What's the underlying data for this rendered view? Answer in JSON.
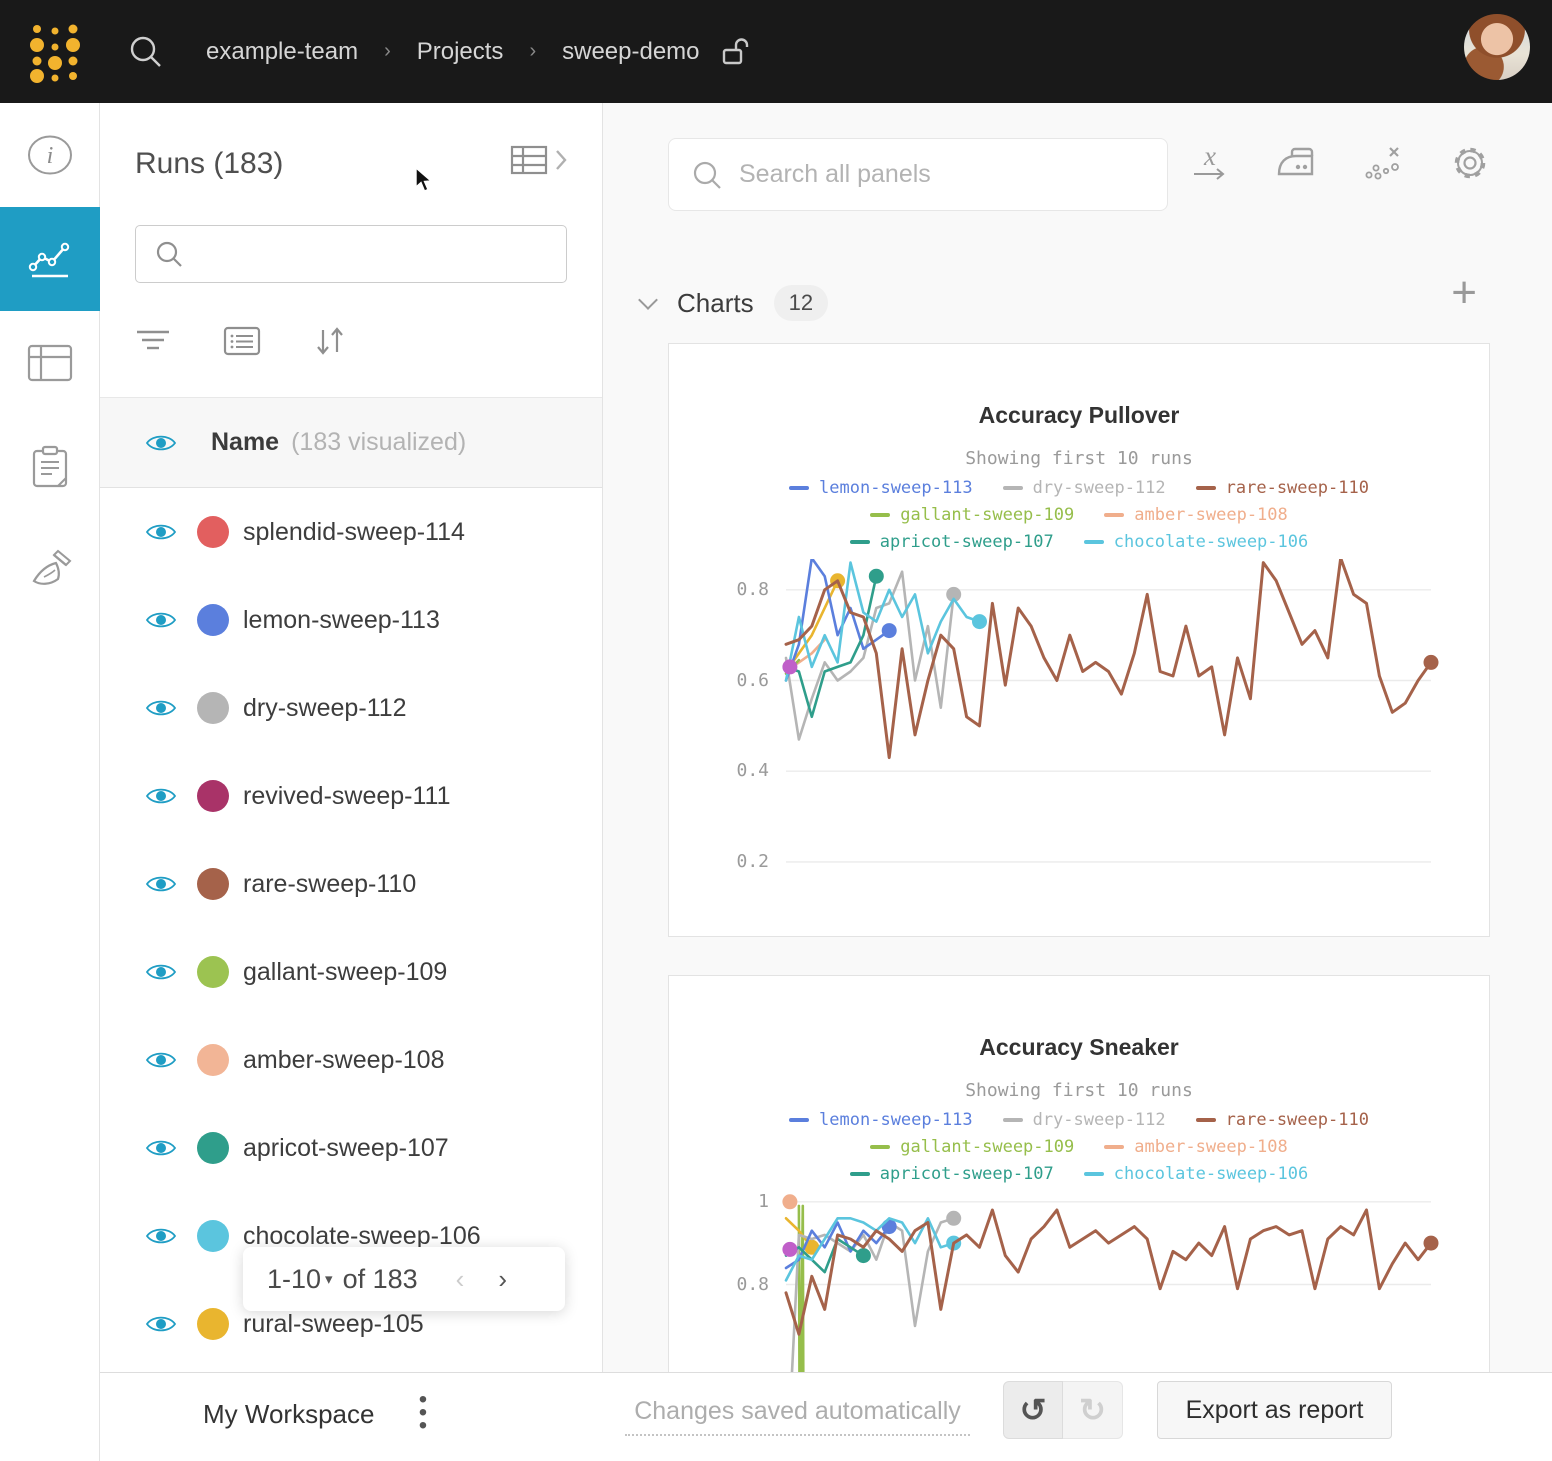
{
  "topbar": {
    "breadcrumb": [
      "example-team",
      "Projects",
      "sweep-demo"
    ]
  },
  "rail": {
    "items": [
      {
        "name": "info",
        "active": false
      },
      {
        "name": "charts",
        "active": true
      },
      {
        "name": "tables",
        "active": false
      },
      {
        "name": "notes",
        "active": false
      },
      {
        "name": "cleanup",
        "active": false
      }
    ]
  },
  "runs_panel": {
    "title": "Runs (183)",
    "search_placeholder": "",
    "header_name": "Name",
    "header_visualized": "(183 visualized)",
    "runs": [
      {
        "name": "splendid-sweep-114",
        "color": "#e25f5f"
      },
      {
        "name": "lemon-sweep-113",
        "color": "#5b7fdd"
      },
      {
        "name": "dry-sweep-112",
        "color": "#b5b5b5"
      },
      {
        "name": "revived-sweep-111",
        "color": "#a93368"
      },
      {
        "name": "rare-sweep-110",
        "color": "#a5624a"
      },
      {
        "name": "gallant-sweep-109",
        "color": "#9cc351"
      },
      {
        "name": "amber-sweep-108",
        "color": "#f2b596"
      },
      {
        "name": "apricot-sweep-107",
        "color": "#2f9e8b"
      },
      {
        "name": "chocolate-sweep-106",
        "color": "#5bc5de"
      },
      {
        "name": "rural-sweep-105",
        "color": "#e9b52f"
      }
    ],
    "pagination": {
      "label": "1-10",
      "of_label": "of 183"
    }
  },
  "main": {
    "search_placeholder": "Search all panels",
    "section_label": "Charts",
    "section_count": "12"
  },
  "workspace_bar": {
    "title": "My Workspace",
    "status": "Changes saved automatically",
    "export_label": "Export as report"
  },
  "chart_data": [
    {
      "type": "line",
      "title": "Accuracy Pullover",
      "subtitle": "Showing first 10 runs",
      "xlabel": "",
      "ylabel": "",
      "xmax": 50,
      "ylim": [
        0.0653,
        0.868
      ],
      "gridlines": [
        0.8,
        0.6,
        0.4,
        0.2
      ],
      "grid": true,
      "legend_position": "top",
      "legend_rows": [
        [
          "lemon-sweep-113",
          "dry-sweep-112",
          "rare-sweep-110"
        ],
        [
          "gallant-sweep-109",
          "amber-sweep-108"
        ],
        [
          "apricot-sweep-107",
          "chocolate-sweep-106"
        ]
      ],
      "series": [
        {
          "name": "amber-sweep-108",
          "color": "#f0ae8c",
          "end_dot": false,
          "x": [
            0,
            1,
            2,
            3
          ],
          "y": [
            0.62,
            0.64,
            0.66,
            0.69
          ]
        },
        {
          "name": "gallant-sweep-109",
          "color": "#96be4b",
          "end_dot": false,
          "x": [
            0,
            1
          ],
          "y": [
            0.615,
            0.645
          ]
        },
        {
          "name": "rural-sweep-105",
          "color": "#e9b52f",
          "end_dot": true,
          "x": [
            0,
            2,
            4
          ],
          "y": [
            0.62,
            0.7,
            0.82
          ]
        },
        {
          "name": "dry-sweep-112",
          "color": "#b5b5b5",
          "end_dot": true,
          "x": [
            0,
            1,
            2,
            3,
            4,
            5,
            6,
            7,
            8,
            9,
            10,
            11,
            12,
            13
          ],
          "y": [
            0.65,
            0.47,
            0.56,
            0.64,
            0.6,
            0.62,
            0.65,
            0.76,
            0.77,
            0.84,
            0.6,
            0.72,
            0.54,
            0.79
          ]
        },
        {
          "name": "lemon-sweep-113",
          "color": "#5b7fdd",
          "end_dot": true,
          "x": [
            0,
            1,
            2,
            3,
            4,
            5,
            6,
            7,
            8
          ],
          "y": [
            0.6,
            0.68,
            0.87,
            0.83,
            0.7,
            0.76,
            0.67,
            0.69,
            0.71
          ]
        },
        {
          "name": "apricot-sweep-107",
          "color": "#2f9e8b",
          "end_dot": true,
          "x": [
            0,
            1,
            2,
            3,
            4,
            5,
            6,
            7
          ],
          "y": [
            0.63,
            0.62,
            0.52,
            0.62,
            0.63,
            0.64,
            0.7,
            0.83
          ]
        },
        {
          "name": "chocolate-sweep-106",
          "color": "#5bc5de",
          "end_dot": true,
          "x": [
            0,
            1,
            2,
            3,
            4,
            5,
            6,
            7,
            8,
            9,
            10,
            11,
            12,
            13,
            14,
            15
          ],
          "y": [
            0.6,
            0.74,
            0.63,
            0.7,
            0.64,
            0.86,
            0.75,
            0.73,
            0.8,
            0.74,
            0.79,
            0.66,
            0.73,
            0.78,
            0.74,
            0.73
          ]
        },
        {
          "name": "revived-sweep-111",
          "color": "#c05fc9",
          "end_dot": true,
          "x": [
            0.3
          ],
          "y": [
            0.63
          ]
        },
        {
          "name": "rare-sweep-110",
          "color": "#a5624a",
          "end_dot": true,
          "x": [
            0,
            1,
            2,
            3,
            4,
            5,
            6,
            7,
            8,
            9,
            10,
            11,
            12,
            13,
            14,
            15,
            16,
            17,
            18,
            19,
            20,
            21,
            22,
            23,
            24,
            25,
            26,
            27,
            28,
            29,
            30,
            31,
            32,
            33,
            34,
            35,
            36,
            37,
            38,
            39,
            40,
            41,
            42,
            43,
            44,
            45,
            46,
            47,
            48,
            49,
            50
          ],
          "y": [
            0.68,
            0.69,
            0.72,
            0.8,
            0.82,
            0.75,
            0.74,
            0.66,
            0.43,
            0.67,
            0.48,
            0.6,
            0.7,
            0.67,
            0.52,
            0.5,
            0.77,
            0.59,
            0.76,
            0.72,
            0.65,
            0.6,
            0.7,
            0.62,
            0.64,
            0.62,
            0.57,
            0.66,
            0.79,
            0.62,
            0.61,
            0.72,
            0.61,
            0.63,
            0.48,
            0.65,
            0.56,
            0.86,
            0.82,
            0.75,
            0.68,
            0.71,
            0.65,
            0.87,
            0.79,
            0.77,
            0.61,
            0.53,
            0.55,
            0.6,
            0.64
          ]
        }
      ]
    },
    {
      "type": "line",
      "title": "Accuracy Sneaker",
      "subtitle": "Showing first 10 runs",
      "xlabel": "",
      "ylabel": "",
      "xmax": 50,
      "ylim": [
        0.5065,
        1.026
      ],
      "gridlines": [
        1,
        0.8
      ],
      "grid": true,
      "legend_position": "top",
      "legend_rows": [
        [
          "lemon-sweep-113",
          "dry-sweep-112",
          "rare-sweep-110"
        ],
        [
          "gallant-sweep-109",
          "amber-sweep-108"
        ],
        [
          "apricot-sweep-107",
          "chocolate-sweep-106"
        ]
      ],
      "series": [
        {
          "name": "amber-sweep-108",
          "color": "#f0ae8c",
          "end_dot": true,
          "x": [
            0.3
          ],
          "y": [
            1.0
          ]
        },
        {
          "name": "gallant-sweep-109",
          "color": "#96be4b",
          "end_dot": false,
          "x": [
            1.0,
            1.06,
            1.3,
            1.36
          ],
          "y": [
            0.99,
            0.4,
            0.99,
            0.4
          ]
        },
        {
          "name": "rural-sweep-105",
          "color": "#e9b52f",
          "end_dot": true,
          "x": [
            0,
            1,
            2
          ],
          "y": [
            0.96,
            0.93,
            0.89
          ]
        },
        {
          "name": "dry-sweep-112",
          "color": "#b5b5b5",
          "end_dot": true,
          "x": [
            0,
            1,
            2,
            3,
            4,
            5,
            6,
            7,
            8,
            9,
            10,
            11,
            12,
            13
          ],
          "y": [
            0.3,
            0.92,
            0.91,
            0.92,
            0.9,
            0.88,
            0.92,
            0.86,
            0.95,
            0.93,
            0.7,
            0.88,
            0.95,
            0.96
          ]
        },
        {
          "name": "lemon-sweep-113",
          "color": "#5b7fdd",
          "end_dot": true,
          "x": [
            0,
            1,
            2,
            3,
            4,
            5,
            6,
            7,
            8
          ],
          "y": [
            0.84,
            0.86,
            0.93,
            0.89,
            0.95,
            0.88,
            0.93,
            0.9,
            0.94
          ]
        },
        {
          "name": "apricot-sweep-107",
          "color": "#2f9e8b",
          "end_dot": true,
          "x": [
            0,
            1,
            2,
            3,
            4,
            5,
            6
          ],
          "y": [
            0.87,
            0.89,
            0.86,
            0.83,
            0.91,
            0.89,
            0.87
          ]
        },
        {
          "name": "chocolate-sweep-106",
          "color": "#5bc5de",
          "end_dot": true,
          "x": [
            0,
            1,
            2,
            3,
            4,
            5,
            6,
            7,
            8,
            9,
            10,
            11,
            12,
            13
          ],
          "y": [
            0.81,
            0.87,
            0.86,
            0.91,
            0.96,
            0.96,
            0.95,
            0.93,
            0.96,
            0.95,
            0.9,
            0.96,
            0.89,
            0.9
          ]
        },
        {
          "name": "revived-sweep-111",
          "color": "#c05fc9",
          "end_dot": true,
          "x": [
            0.3
          ],
          "y": [
            0.885
          ]
        },
        {
          "name": "rare-sweep-110",
          "color": "#a5624a",
          "end_dot": true,
          "x": [
            0,
            1,
            2,
            3,
            4,
            5,
            6,
            7,
            8,
            9,
            10,
            11,
            12,
            13,
            14,
            15,
            16,
            17,
            18,
            19,
            20,
            21,
            22,
            23,
            24,
            25,
            26,
            27,
            28,
            29,
            30,
            31,
            32,
            33,
            34,
            35,
            36,
            37,
            38,
            39,
            40,
            41,
            42,
            43,
            44,
            45,
            46,
            47,
            48,
            49,
            50
          ],
          "y": [
            0.78,
            0.68,
            0.82,
            0.74,
            0.92,
            0.91,
            0.89,
            0.93,
            0.91,
            0.88,
            0.93,
            0.95,
            0.74,
            0.9,
            0.92,
            0.89,
            0.98,
            0.87,
            0.83,
            0.91,
            0.94,
            0.98,
            0.89,
            0.91,
            0.93,
            0.9,
            0.92,
            0.94,
            0.91,
            0.79,
            0.88,
            0.86,
            0.9,
            0.87,
            0.94,
            0.79,
            0.91,
            0.93,
            0.94,
            0.92,
            0.93,
            0.79,
            0.91,
            0.94,
            0.92,
            0.98,
            0.79,
            0.85,
            0.9,
            0.86,
            0.9
          ]
        }
      ]
    }
  ]
}
